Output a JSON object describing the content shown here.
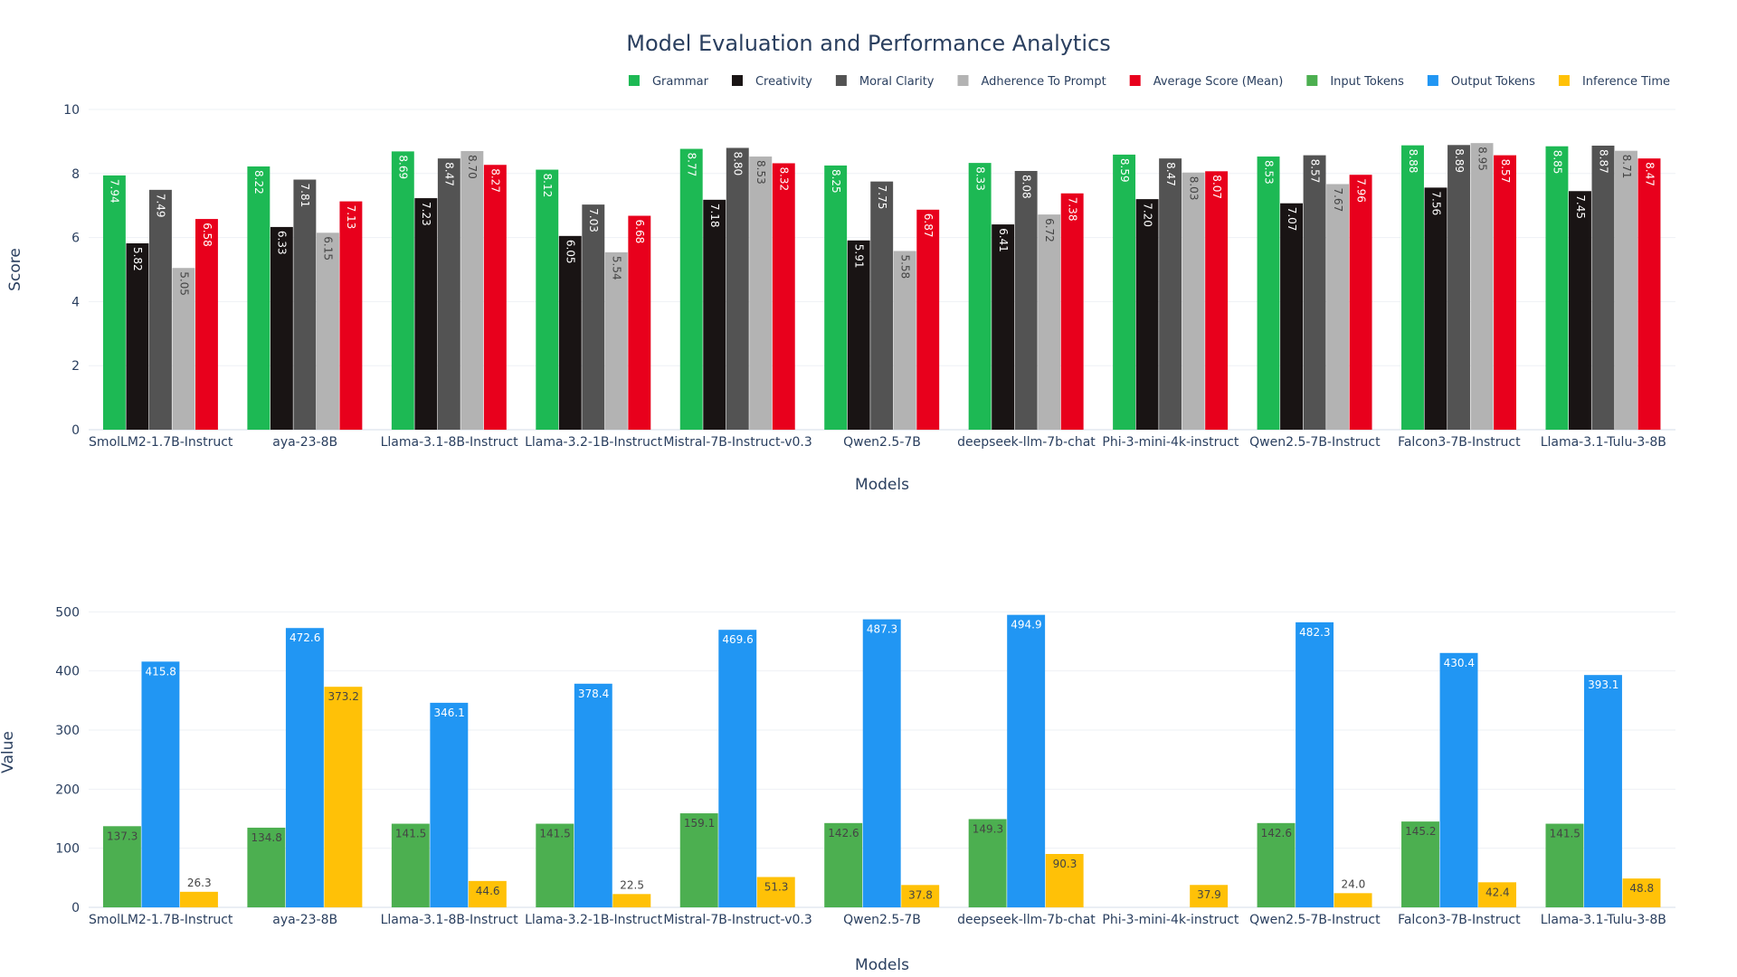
{
  "title": "Model Evaluation and Performance Analytics",
  "chart_data": [
    {
      "type": "bar",
      "xlabel": "Models",
      "ylabel": "Score",
      "ylim": [
        0,
        10
      ],
      "yticks": [
        0,
        2,
        4,
        6,
        8,
        10
      ],
      "grid": true,
      "legend": "top-right",
      "categories": [
        "SmolLM2-1.7B-Instruct",
        "aya-23-8B",
        "Llama-3.1-8B-Instruct",
        "Llama-3.2-1B-Instruct",
        "Mistral-7B-Instruct-v0.3",
        "Qwen2.5-7B",
        "deepseek-llm-7b-chat",
        "Phi-3-mini-4k-instruct",
        "Qwen2.5-7B-Instruct",
        "Falcon3-7B-Instruct",
        "Llama-3.1-Tulu-3-8B"
      ],
      "series": [
        {
          "name": "Grammar",
          "color": "#1db954",
          "label_color": "#ffffff",
          "values": [
            7.94,
            8.22,
            8.69,
            8.12,
            8.77,
            8.25,
            8.33,
            8.59,
            8.53,
            8.88,
            8.85
          ],
          "labels": [
            "7.94",
            "8.22",
            "8.69",
            "8.12",
            "8.77",
            "8.25",
            "8.33",
            "8.59",
            "8.53",
            "8.88",
            "8.85"
          ]
        },
        {
          "name": "Creativity",
          "color": "#191414",
          "label_color": "#ffffff",
          "values": [
            5.82,
            6.33,
            7.23,
            6.05,
            7.18,
            5.91,
            6.41,
            7.2,
            7.07,
            7.56,
            7.45
          ],
          "labels": [
            "5.82",
            "6.33",
            "7.23",
            "6.05",
            "7.18",
            "5.91",
            "6.41",
            "7.20",
            "7.07",
            "7.56",
            "7.45"
          ]
        },
        {
          "name": "Moral Clarity",
          "color": "#535353",
          "label_color": "#ffffff",
          "values": [
            7.49,
            7.81,
            8.47,
            7.03,
            8.8,
            7.75,
            8.08,
            8.47,
            8.57,
            8.89,
            8.87
          ],
          "labels": [
            "7.49",
            "7.81",
            "8.47",
            "7.03",
            "8.80",
            "7.75",
            "8.08",
            "8.47",
            "8.57",
            "8.89",
            "8.87"
          ]
        },
        {
          "name": "Adherence To Prompt",
          "color": "#b3b3b3",
          "label_color": "#444444",
          "values": [
            5.05,
            6.15,
            8.7,
            5.54,
            8.53,
            5.58,
            6.72,
            8.03,
            7.67,
            8.95,
            8.71
          ],
          "labels": [
            "5.05",
            "6.15",
            "8.70",
            "5.54",
            "8.53",
            "5.58",
            "6.72",
            "8.03",
            "7.67",
            "8.95",
            "8.71"
          ]
        },
        {
          "name": "Average Score (Mean)",
          "color": "#e8001c",
          "label_color": "#ffffff",
          "values": [
            6.58,
            7.13,
            8.27,
            6.68,
            8.32,
            6.87,
            7.38,
            8.07,
            7.96,
            8.57,
            8.47
          ],
          "labels": [
            "6.58",
            "7.13",
            "8.27",
            "6.68",
            "8.32",
            "6.87",
            "7.38",
            "8.07",
            "7.96",
            "8.57",
            "8.47"
          ]
        }
      ]
    },
    {
      "type": "bar",
      "xlabel": "Models",
      "ylabel": "Value",
      "ylim": [
        0,
        525
      ],
      "yticks": [
        0,
        100,
        200,
        300,
        400,
        500
      ],
      "grid": true,
      "legend": "top-right",
      "categories": [
        "SmolLM2-1.7B-Instruct",
        "aya-23-8B",
        "Llama-3.1-8B-Instruct",
        "Llama-3.2-1B-Instruct",
        "Mistral-7B-Instruct-v0.3",
        "Qwen2.5-7B",
        "deepseek-llm-7b-chat",
        "Phi-3-mini-4k-instruct",
        "Qwen2.5-7B-Instruct",
        "Falcon3-7B-Instruct",
        "Llama-3.1-Tulu-3-8B"
      ],
      "series": [
        {
          "name": "Input Tokens",
          "color": "#4caf50",
          "label_color": "#444444",
          "values": [
            137.3,
            134.8,
            141.5,
            141.5,
            159.1,
            142.6,
            149.3,
            null,
            142.6,
            145.2,
            141.5
          ],
          "labels": [
            "137.3",
            "134.8",
            "141.5",
            "141.5",
            "159.1",
            "142.6",
            "149.3",
            "",
            "142.6",
            "145.2",
            "141.5"
          ]
        },
        {
          "name": "Output Tokens",
          "color": "#2196f3",
          "label_color": "#ffffff",
          "values": [
            415.8,
            472.6,
            346.1,
            378.4,
            469.6,
            487.3,
            494.9,
            null,
            482.3,
            430.4,
            393.1
          ],
          "labels": [
            "415.8",
            "472.6",
            "346.1",
            "378.4",
            "469.6",
            "487.3",
            "494.9",
            "",
            "482.3",
            "430.4",
            "393.1"
          ]
        },
        {
          "name": "Inference Time",
          "color": "#ffc107",
          "label_color": "#444444",
          "values": [
            26.3,
            373.2,
            44.6,
            22.5,
            51.3,
            37.8,
            90.3,
            37.9,
            24.0,
            42.4,
            48.8
          ],
          "labels": [
            "26.3",
            "373.2",
            "44.6",
            "22.5",
            "51.3",
            "37.8",
            "90.3",
            "37.9",
            "24.0",
            "42.4",
            "48.8"
          ]
        }
      ]
    }
  ]
}
